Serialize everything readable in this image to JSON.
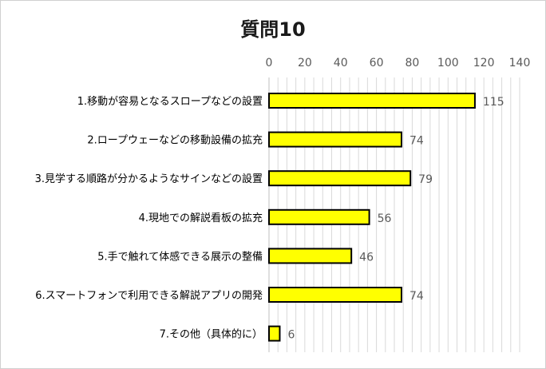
{
  "chart_data": {
    "type": "bar",
    "orientation": "horizontal",
    "title": "質問10",
    "categories": [
      "1.移動が容易となるスロープなどの設置",
      "2.ロープウェーなどの移動設備の拡充",
      "3.見学する順路が分かるようなサインなどの設置",
      "4.現地での解説看板の拡充",
      "5.手で触れて体感できる展示の整備",
      "6.スマートフォンで利用できる解説アプリの開発",
      "7.その他（具体的に）"
    ],
    "values": [
      115,
      74,
      79,
      56,
      46,
      74,
      6
    ],
    "xlim": [
      0,
      140
    ],
    "xticks": [
      "0",
      "20",
      "40",
      "60",
      "80",
      "100",
      "120",
      "140"
    ],
    "xaxis_position": "top",
    "gridlines": "vertical",
    "bar_color": "#ffff00",
    "bar_edge_color": "#000000",
    "legend": "none"
  }
}
